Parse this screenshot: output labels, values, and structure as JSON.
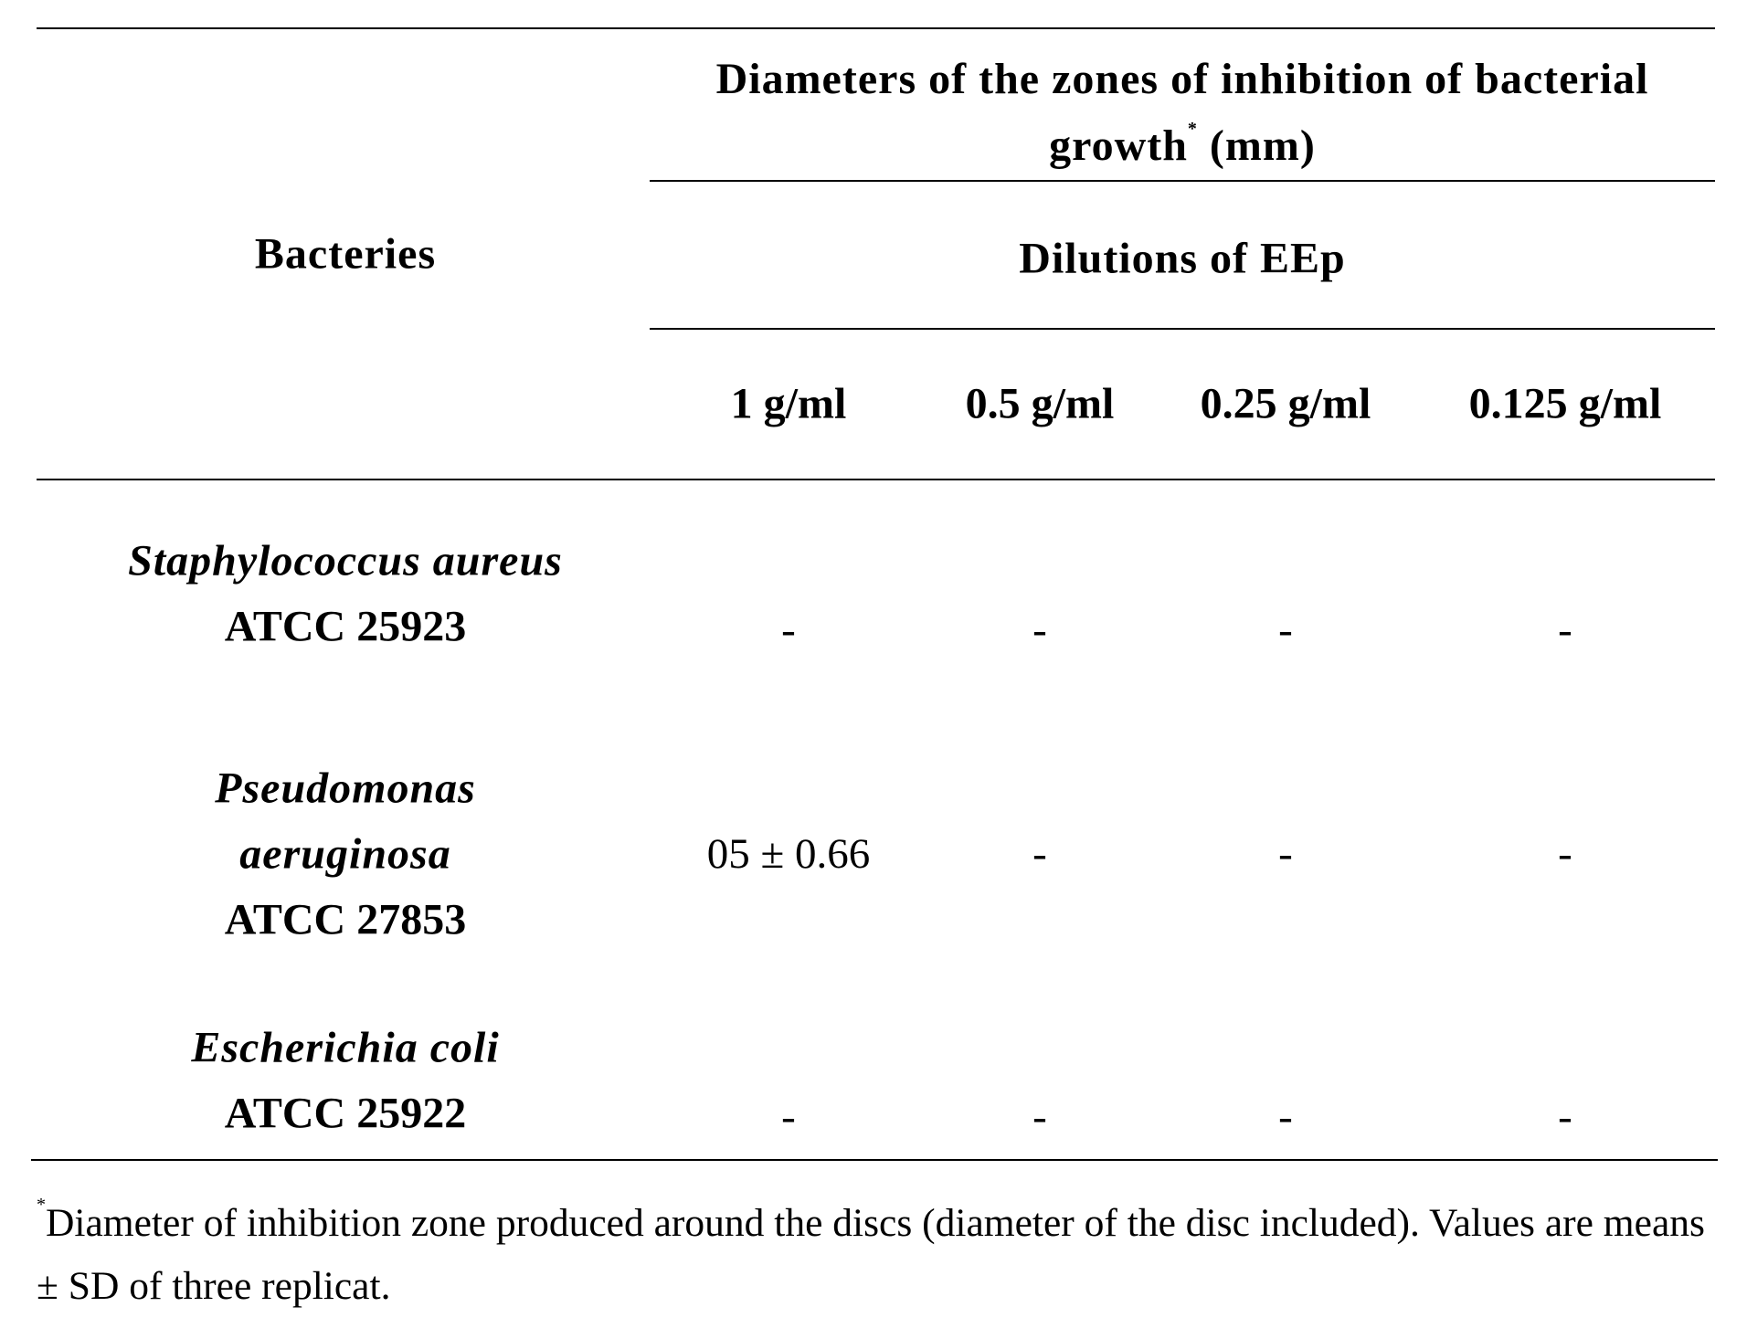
{
  "table": {
    "header": {
      "bacteria": "Bacteries",
      "group_title": "Diameters of the zones of inhibition of bacterial growth",
      "group_mark": "*",
      "group_unit": "(mm)",
      "subgroup": "Dilutions of EEp",
      "columns": [
        "1 g/ml",
        "0.5 g/ml",
        "0.25 g/ml",
        "0.125 g/ml"
      ]
    },
    "rows": [
      {
        "species_lines": [
          "Staphylococcus aureus"
        ],
        "strain": "ATCC 25923",
        "values": [
          "-",
          "-",
          "-",
          "-"
        ]
      },
      {
        "species_lines": [
          "Pseudomonas",
          "aeruginosa"
        ],
        "strain": "ATCC 27853",
        "values": [
          "05 ± 0.66",
          "-",
          "-",
          "-"
        ]
      },
      {
        "species_lines": [
          "Escherichia coli"
        ],
        "strain": "ATCC 25922",
        "values": [
          "-",
          "-",
          "-",
          "-"
        ]
      }
    ],
    "footnote": {
      "mark": "*",
      "text": "Diameter of inhibition zone produced around the discs (diameter of the disc included). Values are means ± SD of three replicat."
    }
  }
}
